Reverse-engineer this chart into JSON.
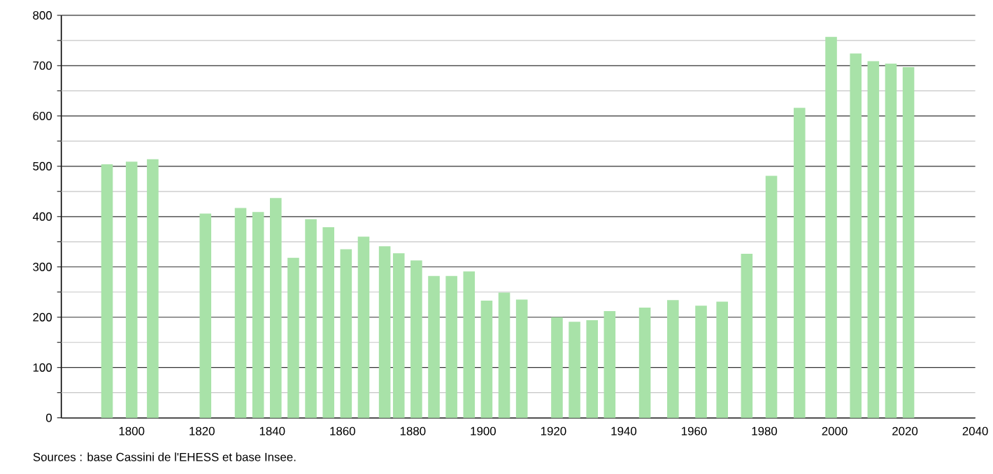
{
  "chart_data": {
    "type": "bar",
    "x": [
      1793,
      1800,
      1806,
      1821,
      1831,
      1836,
      1841,
      1846,
      1851,
      1856,
      1861,
      1866,
      1872,
      1876,
      1881,
      1886,
      1891,
      1896,
      1901,
      1906,
      1911,
      1921,
      1926,
      1931,
      1936,
      1946,
      1954,
      1962,
      1968,
      1975,
      1982,
      1990,
      1999,
      2006,
      2011,
      2016,
      2021
    ],
    "values": [
      504,
      509,
      514,
      406,
      417,
      409,
      437,
      318,
      395,
      379,
      335,
      360,
      341,
      327,
      313,
      282,
      282,
      291,
      233,
      249,
      235,
      200,
      191,
      194,
      212,
      219,
      234,
      223,
      231,
      326,
      481,
      616,
      757,
      724,
      709,
      704,
      697
    ],
    "color": "#a8e2a8",
    "xlim": [
      1780,
      2040
    ],
    "xticks": [
      1800,
      1820,
      1840,
      1860,
      1880,
      1900,
      1920,
      1940,
      1960,
      1980,
      2000,
      2020,
      2040
    ],
    "ylim": [
      0,
      800
    ],
    "yticks": [
      0,
      {
        "value": 50,
        "label": null
      },
      100,
      {
        "value": 150,
        "label": null
      },
      200,
      {
        "value": 250,
        "label": null
      },
      300,
      {
        "value": 350,
        "label": null
      },
      400,
      {
        "value": 450,
        "label": null
      },
      500,
      {
        "value": 550,
        "label": null
      },
      600,
      {
        "value": 650,
        "label": null
      },
      700,
      {
        "value": 750,
        "label": null
      },
      800
    ],
    "grid": "y",
    "annotations": [
      "Sources : base Cassini de l'EHESS et base Insee."
    ]
  }
}
